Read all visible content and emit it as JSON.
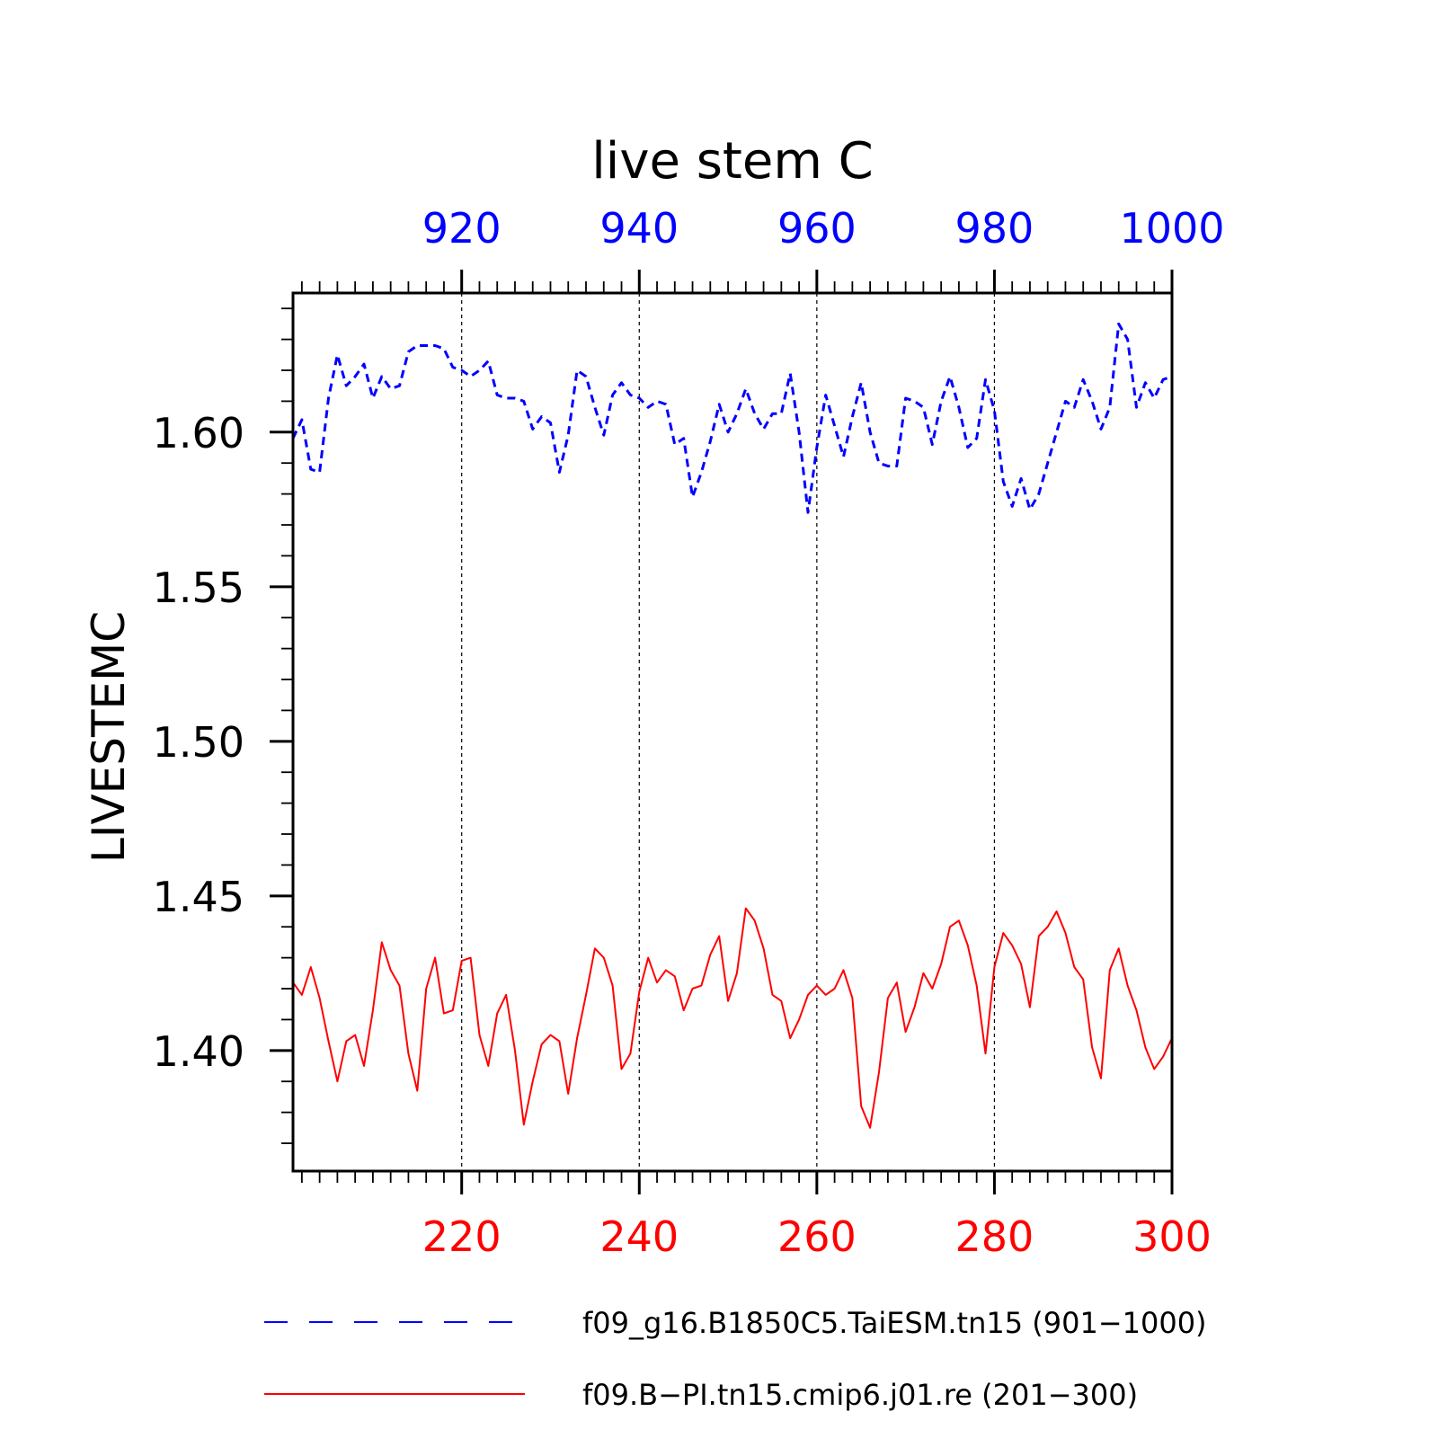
{
  "chart_data": {
    "type": "line",
    "title": "live stem C",
    "ylabel": "LIVESTEMC",
    "ylim": [
      1.361,
      1.645
    ],
    "yticks": [
      1.4,
      1.45,
      1.5,
      1.55,
      1.6
    ],
    "ytick_labels": [
      "1.40",
      "1.45",
      "1.50",
      "1.55",
      "1.60"
    ],
    "grid": "vertical dotted lines at labeled x ticks",
    "colors": {
      "top_axis": "#0000ff",
      "bottom_axis": "#ff0000",
      "frame": "#000000"
    },
    "x_top": {
      "range": [
        901,
        1000
      ],
      "ticks": [
        920,
        940,
        960,
        980,
        1000
      ],
      "tick_labels": [
        "920",
        "940",
        "960",
        "980",
        "1000"
      ],
      "color": "#0000ff"
    },
    "x_bottom": {
      "range": [
        201,
        300
      ],
      "ticks": [
        220,
        240,
        260,
        280,
        300
      ],
      "tick_labels": [
        "220",
        "240",
        "260",
        "280",
        "300"
      ],
      "color": "#ff0000"
    },
    "legend_position": "bottom",
    "series": [
      {
        "name": "f09_g16.B1850C5.TaiESM.tn15 (901−1000)",
        "color": "#0000ff",
        "dash": "dashed",
        "axis": "top",
        "x_start": 901,
        "values": [
          1.598,
          1.604,
          1.588,
          1.587,
          1.611,
          1.625,
          1.615,
          1.618,
          1.622,
          1.611,
          1.618,
          1.614,
          1.615,
          1.626,
          1.628,
          1.628,
          1.628,
          1.627,
          1.621,
          1.62,
          1.618,
          1.62,
          1.623,
          1.612,
          1.611,
          1.611,
          1.61,
          1.601,
          1.605,
          1.603,
          1.587,
          1.599,
          1.62,
          1.618,
          1.608,
          1.599,
          1.612,
          1.616,
          1.612,
          1.611,
          1.608,
          1.61,
          1.609,
          1.596,
          1.598,
          1.579,
          1.587,
          1.597,
          1.609,
          1.6,
          1.606,
          1.614,
          1.606,
          1.601,
          1.606,
          1.606,
          1.619,
          1.6,
          1.574,
          1.595,
          1.612,
          1.602,
          1.592,
          1.605,
          1.616,
          1.6,
          1.59,
          1.589,
          1.589,
          1.611,
          1.61,
          1.608,
          1.596,
          1.61,
          1.618,
          1.608,
          1.595,
          1.598,
          1.617,
          1.607,
          1.584,
          1.576,
          1.585,
          1.575,
          1.58,
          1.59,
          1.6,
          1.61,
          1.608,
          1.617,
          1.61,
          1.601,
          1.608,
          1.635,
          1.63,
          1.608,
          1.616,
          1.611,
          1.617,
          1.618
        ]
      },
      {
        "name": "f09.B−PI.tn15.cmip6.j01.re (201−300)",
        "color": "#ff0000",
        "dash": "solid",
        "axis": "bottom",
        "x_start": 201,
        "values": [
          1.422,
          1.418,
          1.427,
          1.417,
          1.403,
          1.39,
          1.403,
          1.405,
          1.395,
          1.413,
          1.435,
          1.426,
          1.421,
          1.399,
          1.387,
          1.42,
          1.43,
          1.412,
          1.413,
          1.429,
          1.43,
          1.405,
          1.395,
          1.412,
          1.418,
          1.4,
          1.376,
          1.39,
          1.402,
          1.405,
          1.403,
          1.386,
          1.404,
          1.418,
          1.433,
          1.43,
          1.421,
          1.394,
          1.399,
          1.419,
          1.43,
          1.422,
          1.426,
          1.424,
          1.413,
          1.42,
          1.421,
          1.431,
          1.437,
          1.416,
          1.425,
          1.446,
          1.442,
          1.433,
          1.418,
          1.416,
          1.404,
          1.41,
          1.418,
          1.421,
          1.418,
          1.42,
          1.426,
          1.417,
          1.382,
          1.375,
          1.393,
          1.417,
          1.422,
          1.406,
          1.414,
          1.425,
          1.42,
          1.428,
          1.44,
          1.442,
          1.434,
          1.421,
          1.399,
          1.427,
          1.438,
          1.434,
          1.428,
          1.414,
          1.437,
          1.44,
          1.445,
          1.438,
          1.427,
          1.423,
          1.401,
          1.391,
          1.426,
          1.433,
          1.421,
          1.413,
          1.401,
          1.394,
          1.398,
          1.404
        ]
      }
    ]
  }
}
